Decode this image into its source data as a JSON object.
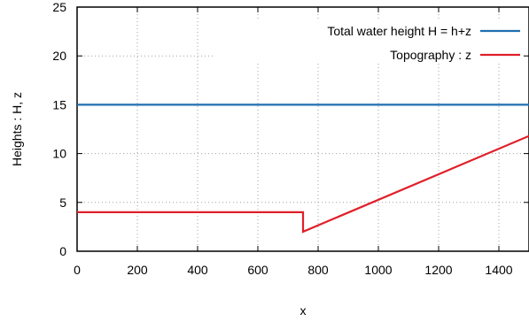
{
  "chart_data": {
    "type": "line",
    "title": "",
    "xlabel": "x",
    "ylabel": "Heights : H, z",
    "xlim": [
      0,
      1500
    ],
    "ylim": [
      0,
      25
    ],
    "xticks": [
      0,
      200,
      400,
      600,
      800,
      1000,
      1200,
      1400
    ],
    "yticks": [
      0,
      5,
      10,
      15,
      20,
      25
    ],
    "grid": true,
    "legend_position": "top-right",
    "series": [
      {
        "name": "Total water height H = h+z",
        "color": "#1f6fb0",
        "x": [
          0,
          1500
        ],
        "y": [
          15,
          15
        ]
      },
      {
        "name": "Topography : z",
        "color": "#e0202a",
        "x": [
          0,
          750,
          750,
          1500
        ],
        "y": [
          4,
          4,
          2,
          11.8
        ]
      }
    ]
  }
}
